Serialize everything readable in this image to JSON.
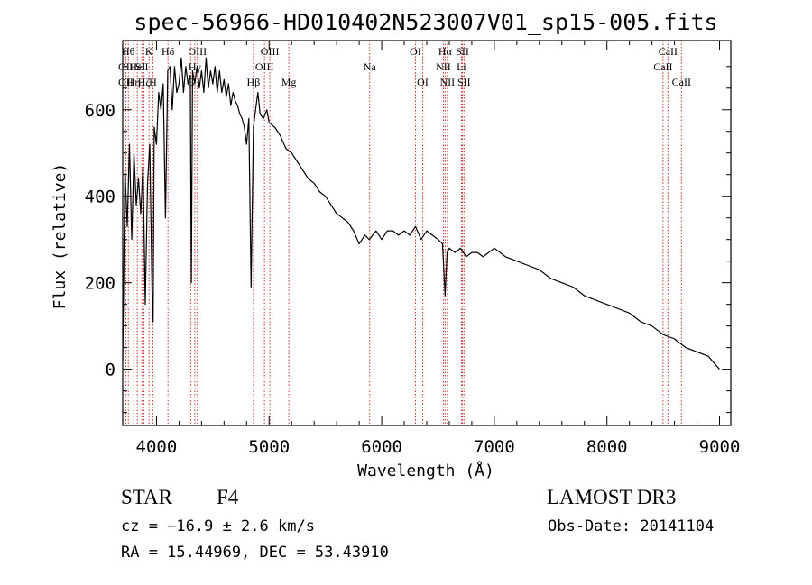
{
  "chart_data": {
    "type": "line",
    "title": "spec-56966-HD010402N523007V01_sp15-005.fits",
    "xlabel": "Wavelength (Å)",
    "ylabel": "Flux (relative)",
    "xlim": [
      3700,
      9100
    ],
    "ylim": [
      -130,
      760
    ],
    "xticks": [
      4000,
      5000,
      6000,
      7000,
      8000,
      9000
    ],
    "yticks": [
      0,
      200,
      400,
      600
    ],
    "series": [
      {
        "name": "flux",
        "x": [
          3700,
          3720,
          3740,
          3760,
          3780,
          3800,
          3820,
          3840,
          3860,
          3880,
          3900,
          3920,
          3940,
          3960,
          3970,
          3980,
          4000,
          4020,
          4040,
          4060,
          4080,
          4100,
          4120,
          4140,
          4160,
          4180,
          4200,
          4220,
          4240,
          4260,
          4280,
          4300,
          4310,
          4320,
          4340,
          4360,
          4380,
          4400,
          4420,
          4440,
          4460,
          4480,
          4500,
          4520,
          4540,
          4560,
          4580,
          4600,
          4620,
          4640,
          4660,
          4680,
          4700,
          4720,
          4740,
          4760,
          4780,
          4800,
          4820,
          4840,
          4861,
          4880,
          4900,
          4920,
          4950,
          4980,
          5000,
          5050,
          5100,
          5150,
          5200,
          5250,
          5300,
          5350,
          5400,
          5450,
          5500,
          5550,
          5600,
          5650,
          5700,
          5750,
          5800,
          5850,
          5890,
          5950,
          6000,
          6050,
          6100,
          6150,
          6200,
          6250,
          6300,
          6350,
          6400,
          6450,
          6500,
          6540,
          6563,
          6580,
          6600,
          6650,
          6700,
          6750,
          6800,
          6850,
          6900,
          6950,
          7000,
          7100,
          7200,
          7300,
          7400,
          7500,
          7600,
          7700,
          7800,
          7900,
          8000,
          8100,
          8200,
          8300,
          8400,
          8500,
          8600,
          8700,
          8800,
          8900,
          9000
        ],
        "values": [
          20,
          460,
          330,
          520,
          300,
          500,
          380,
          440,
          360,
          470,
          150,
          430,
          520,
          180,
          110,
          560,
          520,
          640,
          600,
          660,
          350,
          690,
          700,
          600,
          700,
          640,
          660,
          720,
          640,
          700,
          660,
          680,
          200,
          690,
          660,
          700,
          650,
          690,
          640,
          720,
          650,
          690,
          660,
          700,
          640,
          690,
          640,
          670,
          630,
          660,
          610,
          640,
          620,
          610,
          590,
          580,
          560,
          520,
          580,
          190,
          560,
          600,
          640,
          590,
          580,
          600,
          570,
          560,
          540,
          510,
          500,
          480,
          460,
          440,
          430,
          410,
          400,
          380,
          360,
          350,
          340,
          320,
          290,
          310,
          300,
          320,
          300,
          320,
          320,
          310,
          320,
          310,
          330,
          300,
          320,
          310,
          300,
          290,
          170,
          270,
          280,
          270,
          280,
          260,
          270,
          270,
          260,
          270,
          280,
          260,
          250,
          240,
          230,
          210,
          200,
          190,
          170,
          160,
          150,
          140,
          130,
          110,
          100,
          80,
          70,
          50,
          40,
          30,
          0
        ]
      }
    ],
    "lines": [
      {
        "wl": 3750,
        "label": "Hθ",
        "row": 0
      },
      {
        "wl": 3727,
        "label": "OII",
        "row": 1
      },
      {
        "wl": 3727,
        "label": "OII",
        "row": 2
      },
      {
        "wl": 3798,
        "label": "Hη",
        "row": 2
      },
      {
        "wl": 3830,
        "label": "HeI",
        "row": 1
      },
      {
        "wl": 3889,
        "label": "Hζ",
        "row": 2
      },
      {
        "wl": 3934,
        "label": "K",
        "row": 0
      },
      {
        "wl": 3870,
        "label": "SII",
        "row": 1
      },
      {
        "wl": 3968,
        "label": "H",
        "row": 2
      },
      {
        "wl": 4102,
        "label": "Hδ",
        "row": 0
      },
      {
        "wl": 4304,
        "label": "G",
        "row": 2
      },
      {
        "wl": 4340,
        "label": "Hγ",
        "row": 1
      },
      {
        "wl": 4363,
        "label": "OIII",
        "row": 0
      },
      {
        "wl": 4861,
        "label": "Hβ",
        "row": 2
      },
      {
        "wl": 4959,
        "label": "OIII",
        "row": 1
      },
      {
        "wl": 5007,
        "label": "OIII",
        "row": 0
      },
      {
        "wl": 5175,
        "label": "Mg",
        "row": 2
      },
      {
        "wl": 5893,
        "label": "Na",
        "row": 1
      },
      {
        "wl": 6300,
        "label": "OI",
        "row": 0
      },
      {
        "wl": 6364,
        "label": "OI",
        "row": 2
      },
      {
        "wl": 6548,
        "label": "NII",
        "row": 1
      },
      {
        "wl": 6563,
        "label": "Hα",
        "row": 0
      },
      {
        "wl": 6583,
        "label": "NII",
        "row": 2
      },
      {
        "wl": 6708,
        "label": "Li",
        "row": 1
      },
      {
        "wl": 6717,
        "label": "SII",
        "row": 0
      },
      {
        "wl": 6731,
        "label": "SII",
        "row": 2
      },
      {
        "wl": 8498,
        "label": "CaII",
        "row": 1
      },
      {
        "wl": 8542,
        "label": "CaII",
        "row": 0
      },
      {
        "wl": 8662,
        "label": "CaII",
        "row": 2
      }
    ]
  },
  "info": {
    "class_label": "STAR",
    "subclass": "F4",
    "survey": "LAMOST DR3",
    "cz": "cz = −16.9 ± 2.6 km/s",
    "obs_date": "Obs-Date: 20141104",
    "coords": "RA =  15.44969, DEC =  53.43910"
  }
}
